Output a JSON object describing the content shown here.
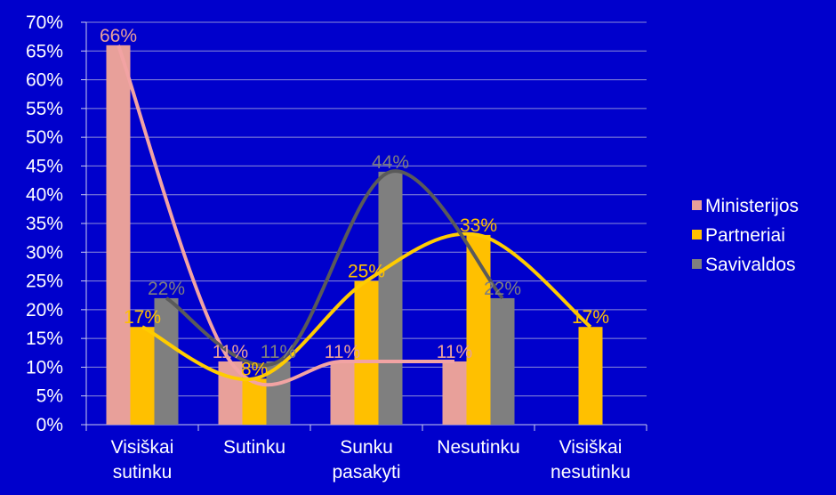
{
  "chart_data": {
    "type": "bar",
    "categories": [
      "Visiškai sutinku",
      "Sutinku",
      "Sunku pasakyti",
      "Nesutinku",
      "Visiškai nesutinku"
    ],
    "series": [
      {
        "name": "Ministerijos",
        "color": "#e8a09a",
        "line_color": "#f2a3a3",
        "values": [
          66,
          11,
          11,
          11,
          null
        ],
        "value_labels": [
          "66%",
          "11%",
          "11%",
          "11%",
          null
        ]
      },
      {
        "name": "Partneriai",
        "color": "#ffc000",
        "line_color": "#ffcc00",
        "values": [
          17,
          8,
          25,
          33,
          17
        ],
        "value_labels": [
          "17%",
          "8%",
          "25%",
          "33%",
          "17%"
        ]
      },
      {
        "name": "Savivaldos",
        "color": "#7f7f7f",
        "line_color": "#5a5a5a",
        "values": [
          22,
          11,
          44,
          22,
          null
        ],
        "value_labels": [
          "22%",
          "11%",
          "44%",
          "22%",
          null
        ]
      }
    ],
    "ylim": [
      0,
      70
    ],
    "yticks": [
      {
        "value": 0,
        "label": "0%"
      },
      {
        "value": 5,
        "label": "5%"
      },
      {
        "value": 10,
        "label": "10%"
      },
      {
        "value": 15,
        "label": "15%"
      },
      {
        "value": 20,
        "label": "20%"
      },
      {
        "value": 25,
        "label": "25%"
      },
      {
        "value": 30,
        "label": "30%"
      },
      {
        "value": 35,
        "label": "35%"
      },
      {
        "value": 40,
        "label": "40%"
      },
      {
        "value": 45,
        "label": "45%"
      },
      {
        "value": 50,
        "label": "50%"
      },
      {
        "value": 55,
        "label": "55%"
      },
      {
        "value": 60,
        "label": "60%"
      },
      {
        "value": 65,
        "label": "65%"
      },
      {
        "value": 70,
        "label": "70%"
      }
    ],
    "grid": true,
    "legend": "right"
  }
}
